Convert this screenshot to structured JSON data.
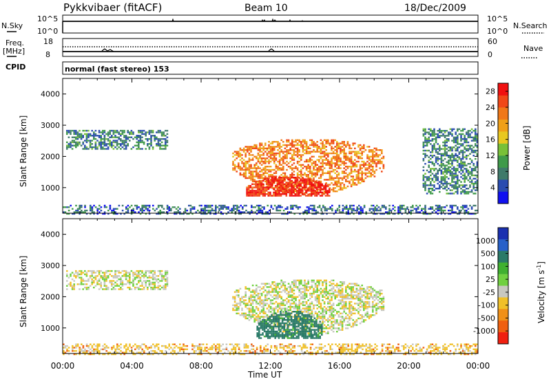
{
  "header": {
    "station": "Pykkvibaer (fitACF)",
    "beam": "Beam 10",
    "date": "18/Dec/2009"
  },
  "aux_panels": {
    "nsky_label": "N.Sky",
    "nsearch_label": "N.Search",
    "nsky_ticks": [
      "10^5",
      "10^0"
    ],
    "nsearch_ticks": [
      "10^5",
      "10^0"
    ],
    "freq_label_1": "Freq.",
    "freq_label_2": "[MHz]",
    "freq_ticks": [
      "18",
      "8"
    ],
    "nave_label": "Nave",
    "nave_ticks": [
      "60",
      "0"
    ],
    "cpid_label": "CPID",
    "cpid_text": "normal (fast stereo) 153"
  },
  "colors": {
    "power_scale": [
      "#1010f0",
      "#2a4cb0",
      "#3f7a6a",
      "#3f9a4a",
      "#78c038",
      "#e8c820",
      "#f0a018",
      "#f07818",
      "#f04818",
      "#f01010"
    ],
    "velocity_scale": [
      "#1a30b0",
      "#2860c8",
      "#2a7a68",
      "#40b030",
      "#70d040",
      "#c8c8c0",
      "#f0c028",
      "#f09018",
      "#f06010",
      "#f02010"
    ]
  },
  "chart_data": [
    {
      "type": "heatmap",
      "name": "power",
      "x_unit": "hours UT",
      "xlim": [
        0,
        24
      ],
      "ylim": [
        180,
        4500
      ],
      "ylabel": "Slant Range [km]",
      "ytick_labels": [
        "1000",
        "2000",
        "3000",
        "4000"
      ],
      "ytick_values": [
        1000,
        2000,
        3000,
        4000
      ],
      "colorbar_label": "Power [dB]",
      "colorbar_ticks": [
        "4",
        "8",
        "12",
        "16",
        "20",
        "24",
        "28"
      ],
      "colorbar_range": [
        0,
        30
      ],
      "features": [
        {
          "region": "evening echo band",
          "x_range": [
            0.2,
            6.0
          ],
          "y_range": [
            2250,
            2850
          ],
          "value": 8
        },
        {
          "region": "main echo arc",
          "x_range": [
            9.8,
            18.5
          ],
          "y_range": [
            700,
            2600
          ],
          "value": 22
        },
        {
          "region": "arc core",
          "x_range": [
            10.6,
            15.4
          ],
          "y_range": [
            750,
            1400
          ],
          "value": 28
        },
        {
          "region": "late echo",
          "x_range": [
            20.8,
            24.0
          ],
          "y_range": [
            800,
            2900
          ],
          "value": 8
        },
        {
          "region": "near-range clutter",
          "x_range": [
            0,
            24
          ],
          "y_range": [
            180,
            450
          ],
          "value": 6
        }
      ]
    },
    {
      "type": "heatmap",
      "name": "velocity",
      "x_unit": "hours UT",
      "xlim": [
        0,
        24
      ],
      "ylim": [
        180,
        4500
      ],
      "ylabel": "Slant Range [km]",
      "ytick_labels": [
        "1000",
        "2000",
        "3000",
        "4000"
      ],
      "ytick_values": [
        1000,
        2000,
        3000,
        4000
      ],
      "colorbar_label": "Velocity [m s",
      "colorbar_superscript": "-1",
      "colorbar_ticks": [
        "1000",
        "500",
        "100",
        "25",
        "-25",
        "-100",
        "-500",
        "-1000"
      ],
      "features": [
        {
          "region": "evening echo band",
          "x_range": [
            0.2,
            6.0
          ],
          "y_range": [
            2250,
            2850
          ],
          "value": 0
        },
        {
          "region": "main echo arc",
          "x_range": [
            9.8,
            18.5
          ],
          "y_range": [
            700,
            2600
          ],
          "value": 0
        },
        {
          "region": "arc core",
          "x_range": [
            11.2,
            15.0
          ],
          "y_range": [
            700,
            1600
          ],
          "value": 150
        },
        {
          "region": "near-range clutter",
          "x_range": [
            0,
            24
          ],
          "y_range": [
            180,
            500
          ],
          "value": -60
        }
      ]
    }
  ],
  "xaxis": {
    "label": "Time UT",
    "ticks": [
      "00:00",
      "04:00",
      "08:00",
      "12:00",
      "16:00",
      "20:00",
      "00:00"
    ],
    "tick_hours": [
      0,
      4,
      8,
      12,
      16,
      20,
      24
    ]
  }
}
